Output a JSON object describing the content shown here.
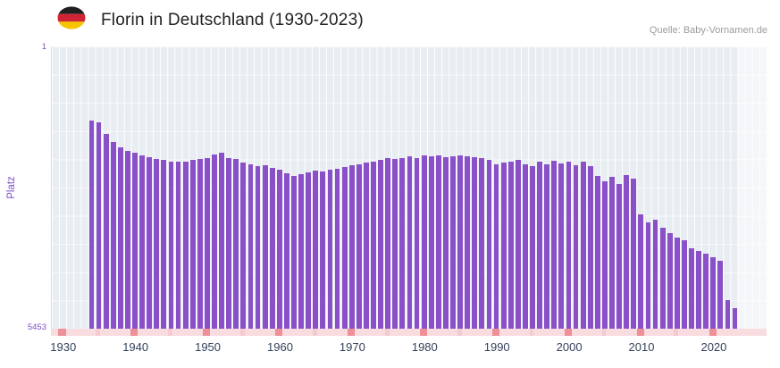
{
  "header": {
    "title": "Florin in Deutschland (1930-2023)",
    "source": "Quelle: Baby-Vornamen.de"
  },
  "colors": {
    "bar": "#8a50c8",
    "plot_background": "#e8edf2",
    "gridline": "#ffffff",
    "axis_band": "#f9dce0",
    "decade_tick": "#ee9098",
    "half_decade_tick": "#f5cad0",
    "axis_text": "#7d4fc5",
    "year_label_text": "#33415c",
    "flag_black": "#1f1f1f",
    "flag_red": "#cf2434",
    "flag_gold": "#f6c500"
  },
  "chart_data": {
    "type": "bar",
    "title": "Florin in Deutschland (1930-2023)",
    "xlabel": "",
    "ylabel": "Platz",
    "legend": "none",
    "grid": true,
    "bar_color": "#8a50c8",
    "y_axis": {
      "min": 1,
      "max": 5453,
      "inverted": true,
      "top_label": "1",
      "bottom_label": "5453",
      "note": "rank 1 is best; bars rise from 5453 toward 1"
    },
    "x_axis": {
      "domain": [
        1929,
        2028
      ],
      "tick_labels": [
        "1930",
        "1940",
        "1950",
        "1960",
        "1970",
        "1980",
        "1990",
        "2000",
        "2010",
        "2020"
      ]
    },
    "series": [
      {
        "name": "Platz von Florin",
        "years": [
          1934,
          1935,
          1936,
          1937,
          1938,
          1939,
          1940,
          1941,
          1942,
          1943,
          1944,
          1945,
          1946,
          1947,
          1948,
          1949,
          1950,
          1951,
          1952,
          1953,
          1954,
          1955,
          1956,
          1957,
          1958,
          1959,
          1960,
          1961,
          1962,
          1963,
          1964,
          1965,
          1966,
          1967,
          1968,
          1969,
          1970,
          1971,
          1972,
          1973,
          1974,
          1975,
          1976,
          1977,
          1978,
          1979,
          1980,
          1981,
          1982,
          1983,
          1984,
          1985,
          1986,
          1987,
          1988,
          1989,
          1990,
          1991,
          1992,
          1993,
          1994,
          1995,
          1996,
          1997,
          1998,
          1999,
          2000,
          2001,
          2002,
          2003,
          2004,
          2005,
          2006,
          2007,
          2008,
          2009,
          2010,
          2011,
          2012,
          2013,
          2014,
          2015,
          2016,
          2017,
          2018,
          2019,
          2020,
          2021,
          2022,
          2023
        ],
        "values": [
          1430,
          1470,
          1700,
          1850,
          1950,
          2020,
          2060,
          2100,
          2140,
          2170,
          2200,
          2220,
          2230,
          2220,
          2200,
          2180,
          2150,
          2080,
          2060,
          2160,
          2180,
          2240,
          2280,
          2320,
          2300,
          2350,
          2380,
          2450,
          2500,
          2470,
          2440,
          2400,
          2420,
          2390,
          2360,
          2330,
          2300,
          2280,
          2250,
          2220,
          2190,
          2160,
          2180,
          2150,
          2130,
          2160,
          2100,
          2130,
          2110,
          2140,
          2120,
          2110,
          2130,
          2140,
          2160,
          2200,
          2280,
          2250,
          2220,
          2200,
          2280,
          2320,
          2230,
          2280,
          2210,
          2260,
          2230,
          2300,
          2230,
          2320,
          2500,
          2600,
          2520,
          2650,
          2480,
          2550,
          3250,
          3400,
          3350,
          3500,
          3600,
          3700,
          3750,
          3900,
          3950,
          4000,
          4080,
          4150,
          4900,
          5050
        ]
      }
    ]
  }
}
